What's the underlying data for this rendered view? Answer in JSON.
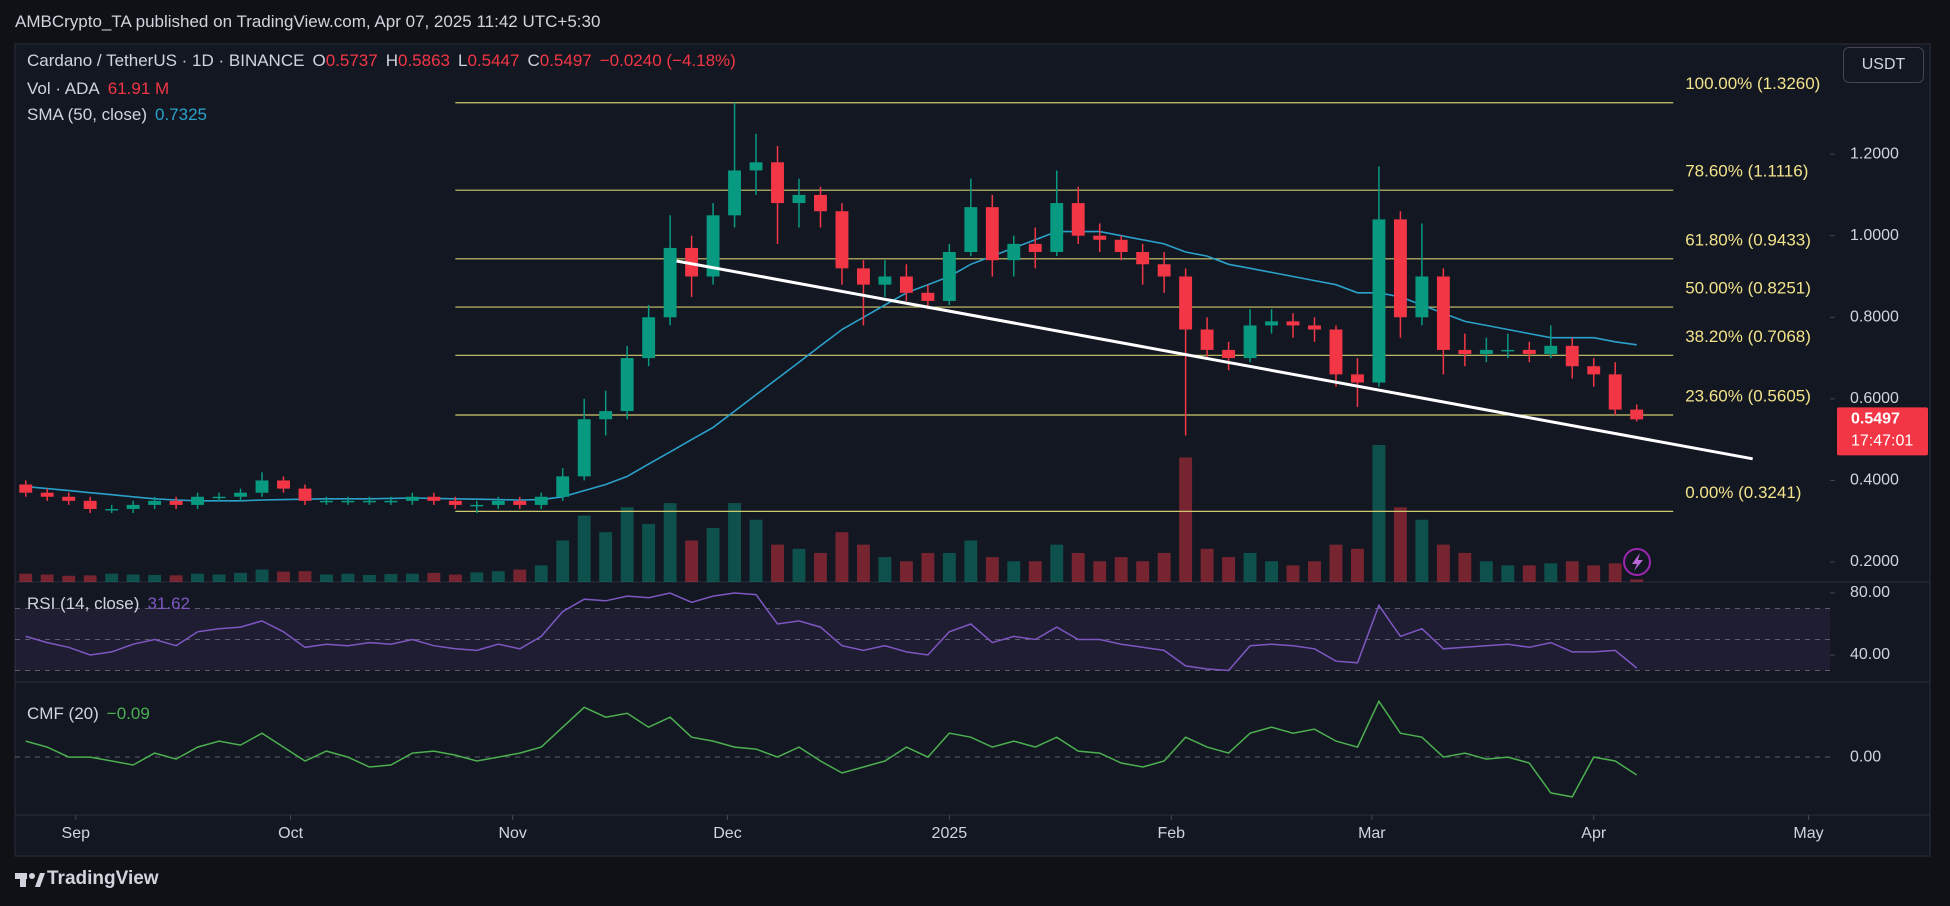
{
  "header": {
    "publisher": "AMBCrypto_TA published on TradingView.com, Apr 07, 2025 11:42 UTC+5:30"
  },
  "footer": {
    "brand": "TradingView"
  },
  "chart_data": {
    "type": "candlestick",
    "symbol": "Cardano / TetherUS · 1D · BINANCE",
    "ohlc": [
      {
        "label": "O",
        "value": 0.5737
      },
      {
        "label": "H",
        "value": 0.5863
      },
      {
        "label": "L",
        "value": 0.5447
      },
      {
        "label": "C",
        "value": 0.5497
      }
    ],
    "change": "−0.0240 (−4.18%)",
    "currency": "USDT",
    "colors": {
      "up": "#089981",
      "down": "#f23645"
    },
    "xlim": [
      -0.5,
      84
    ],
    "xticks": [
      {
        "value": 2.33,
        "label": "Sep"
      },
      {
        "value": 12.33,
        "label": "Oct"
      },
      {
        "value": 22.67,
        "label": "Nov"
      },
      {
        "value": 32.67,
        "label": "Dec"
      },
      {
        "value": 43,
        "label": "2025"
      },
      {
        "value": 53.33,
        "label": "Feb"
      },
      {
        "value": 62.67,
        "label": "Mar"
      },
      {
        "value": 73,
        "label": "Apr"
      },
      {
        "value": 83,
        "label": "May"
      }
    ],
    "ylim": [
      0.151,
      1.47
    ],
    "yticks": [
      {
        "value": 1.2,
        "label": "1.2000"
      },
      {
        "value": 1.0,
        "label": "1.0000"
      },
      {
        "value": 0.8,
        "label": "0.8000"
      },
      {
        "value": 0.6,
        "label": "0.6000"
      },
      {
        "value": 0.4,
        "label": "0.4000"
      },
      {
        "value": 0.2,
        "label": "0.2000"
      }
    ],
    "last_price": 0.5497,
    "countdown": "17:47:01",
    "candles": [
      [
        0.39,
        0.4,
        0.36,
        0.37
      ],
      [
        0.37,
        0.38,
        0.35,
        0.36
      ],
      [
        0.36,
        0.37,
        0.34,
        0.35
      ],
      [
        0.35,
        0.36,
        0.32,
        0.33
      ],
      [
        0.33,
        0.34,
        0.32,
        0.33
      ],
      [
        0.33,
        0.35,
        0.32,
        0.34
      ],
      [
        0.34,
        0.36,
        0.33,
        0.35
      ],
      [
        0.35,
        0.36,
        0.33,
        0.34
      ],
      [
        0.34,
        0.37,
        0.33,
        0.36
      ],
      [
        0.36,
        0.37,
        0.35,
        0.36
      ],
      [
        0.36,
        0.38,
        0.35,
        0.37
      ],
      [
        0.37,
        0.42,
        0.36,
        0.4
      ],
      [
        0.4,
        0.41,
        0.37,
        0.38
      ],
      [
        0.38,
        0.39,
        0.34,
        0.35
      ],
      [
        0.35,
        0.36,
        0.34,
        0.35
      ],
      [
        0.35,
        0.36,
        0.34,
        0.35
      ],
      [
        0.35,
        0.36,
        0.34,
        0.35
      ],
      [
        0.35,
        0.36,
        0.34,
        0.35
      ],
      [
        0.35,
        0.37,
        0.34,
        0.36
      ],
      [
        0.36,
        0.37,
        0.34,
        0.35
      ],
      [
        0.35,
        0.36,
        0.33,
        0.34
      ],
      [
        0.34,
        0.35,
        0.32,
        0.34
      ],
      [
        0.34,
        0.36,
        0.33,
        0.35
      ],
      [
        0.35,
        0.36,
        0.33,
        0.34
      ],
      [
        0.34,
        0.37,
        0.33,
        0.36
      ],
      [
        0.36,
        0.43,
        0.35,
        0.41
      ],
      [
        0.41,
        0.6,
        0.4,
        0.55
      ],
      [
        0.55,
        0.62,
        0.51,
        0.57
      ],
      [
        0.57,
        0.73,
        0.55,
        0.7
      ],
      [
        0.7,
        0.83,
        0.68,
        0.8
      ],
      [
        0.8,
        1.05,
        0.78,
        0.97
      ],
      [
        0.97,
        1.0,
        0.85,
        0.9
      ],
      [
        0.9,
        1.08,
        0.88,
        1.05
      ],
      [
        1.05,
        1.326,
        1.02,
        1.16
      ],
      [
        1.16,
        1.25,
        1.1,
        1.18
      ],
      [
        1.18,
        1.22,
        0.98,
        1.08
      ],
      [
        1.08,
        1.14,
        1.02,
        1.1
      ],
      [
        1.1,
        1.12,
        1.02,
        1.06
      ],
      [
        1.06,
        1.08,
        0.88,
        0.92
      ],
      [
        0.92,
        0.94,
        0.78,
        0.88
      ],
      [
        0.88,
        0.94,
        0.85,
        0.9
      ],
      [
        0.9,
        0.93,
        0.84,
        0.86
      ],
      [
        0.86,
        0.88,
        0.82,
        0.84
      ],
      [
        0.84,
        0.98,
        0.83,
        0.96
      ],
      [
        0.96,
        1.14,
        0.95,
        1.07
      ],
      [
        1.07,
        1.1,
        0.9,
        0.94
      ],
      [
        0.94,
        1.0,
        0.9,
        0.98
      ],
      [
        0.98,
        1.02,
        0.92,
        0.96
      ],
      [
        0.96,
        1.16,
        0.95,
        1.08
      ],
      [
        1.08,
        1.12,
        0.98,
        1.0
      ],
      [
        1.0,
        1.03,
        0.96,
        0.99
      ],
      [
        0.99,
        1.0,
        0.94,
        0.96
      ],
      [
        0.96,
        0.98,
        0.88,
        0.93
      ],
      [
        0.93,
        0.96,
        0.86,
        0.9
      ],
      [
        0.9,
        0.92,
        0.51,
        0.77
      ],
      [
        0.77,
        0.8,
        0.7,
        0.72
      ],
      [
        0.72,
        0.74,
        0.67,
        0.7
      ],
      [
        0.7,
        0.82,
        0.69,
        0.78
      ],
      [
        0.78,
        0.82,
        0.76,
        0.79
      ],
      [
        0.79,
        0.81,
        0.75,
        0.78
      ],
      [
        0.78,
        0.8,
        0.74,
        0.77
      ],
      [
        0.77,
        0.78,
        0.63,
        0.66
      ],
      [
        0.66,
        0.7,
        0.58,
        0.64
      ],
      [
        0.64,
        1.17,
        0.63,
        1.04
      ],
      [
        1.04,
        1.06,
        0.75,
        0.8
      ],
      [
        0.8,
        1.03,
        0.78,
        0.9
      ],
      [
        0.9,
        0.92,
        0.66,
        0.72
      ],
      [
        0.72,
        0.76,
        0.68,
        0.71
      ],
      [
        0.71,
        0.75,
        0.69,
        0.72
      ],
      [
        0.72,
        0.76,
        0.7,
        0.72
      ],
      [
        0.72,
        0.74,
        0.69,
        0.71
      ],
      [
        0.71,
        0.78,
        0.7,
        0.73
      ],
      [
        0.73,
        0.75,
        0.65,
        0.68
      ],
      [
        0.68,
        0.7,
        0.63,
        0.66
      ],
      [
        0.66,
        0.69,
        0.56,
        0.5737
      ],
      [
        0.5737,
        0.5863,
        0.5447,
        0.5497
      ]
    ],
    "fib": {
      "color": "#cfc96e",
      "label_color": "#f2e38a",
      "x": [
        20,
        76.7
      ],
      "levels": [
        {
          "label": "100.00% (1.3260)",
          "value": 1.326
        },
        {
          "label": "78.60% (1.1116)",
          "value": 1.1116
        },
        {
          "label": "61.80% (0.9433)",
          "value": 0.9433
        },
        {
          "label": "50.00% (0.8251)",
          "value": 0.8251
        },
        {
          "label": "38.20% (0.7068)",
          "value": 0.7068
        },
        {
          "label": "23.60% (0.5605)",
          "value": 0.5605
        },
        {
          "label": "0.00% (0.3241)",
          "value": 0.3241
        }
      ]
    },
    "trendline": {
      "color": "#ffffff",
      "x": [
        30.3,
        80.4
      ],
      "y": [
        0.938,
        0.453
      ]
    },
    "sma": {
      "name": "SMA (50, close)",
      "value": 0.7325,
      "color": "#2ba1c9",
      "values": [
        0.385,
        0.38,
        0.375,
        0.37,
        0.365,
        0.36,
        0.355,
        0.352,
        0.35,
        0.35,
        0.35,
        0.352,
        0.353,
        0.354,
        0.355,
        0.355,
        0.355,
        0.356,
        0.357,
        0.356,
        0.355,
        0.354,
        0.353,
        0.352,
        0.353,
        0.36,
        0.375,
        0.39,
        0.41,
        0.44,
        0.47,
        0.5,
        0.53,
        0.57,
        0.61,
        0.65,
        0.69,
        0.73,
        0.77,
        0.8,
        0.83,
        0.86,
        0.88,
        0.9,
        0.93,
        0.95,
        0.97,
        0.99,
        1.01,
        1.01,
        1.01,
        1.0,
        0.99,
        0.98,
        0.96,
        0.95,
        0.93,
        0.92,
        0.91,
        0.9,
        0.89,
        0.88,
        0.86,
        0.86,
        0.85,
        0.83,
        0.81,
        0.79,
        0.78,
        0.77,
        0.76,
        0.75,
        0.75,
        0.75,
        0.74,
        0.7325
      ]
    },
    "volume": {
      "name": "Vol · ADA",
      "value_label": "61.91 M",
      "values": [
        200,
        180,
        150,
        160,
        200,
        180,
        170,
        160,
        200,
        180,
        220,
        300,
        250,
        260,
        180,
        200,
        170,
        190,
        200,
        220,
        180,
        230,
        260,
        300,
        400,
        1000,
        1600,
        1200,
        1800,
        1400,
        1900,
        1000,
        1300,
        1900,
        1500,
        900,
        800,
        700,
        1200,
        900,
        600,
        500,
        700,
        700,
        1000,
        600,
        500,
        500,
        900,
        700,
        500,
        600,
        500,
        700,
        3000,
        800,
        600,
        700,
        500,
        400,
        500,
        900,
        800,
        3300,
        1800,
        1500,
        900,
        700,
        500,
        400,
        400,
        450,
        500,
        400,
        450,
        61.91
      ]
    },
    "rsi": {
      "name": "RSI (14, close)",
      "value": 31.62,
      "color": "#7e57c2",
      "ylim": [
        22.6,
        87.1
      ],
      "yticks": [
        {
          "value": 80,
          "label": "80.00"
        },
        {
          "value": 40,
          "label": "40.00"
        }
      ],
      "levels": [
        30,
        50,
        70
      ],
      "values": [
        52,
        48,
        45,
        40,
        42,
        47,
        50,
        46,
        55,
        57,
        58,
        62,
        55,
        45,
        47,
        46,
        48,
        47,
        50,
        46,
        44,
        43,
        47,
        44,
        52,
        68,
        76,
        75,
        78,
        77,
        80,
        74,
        78,
        80,
        79,
        60,
        62,
        58,
        46,
        43,
        46,
        42,
        40,
        55,
        60,
        48,
        52,
        50,
        58,
        50,
        50,
        47,
        45,
        43,
        33,
        31,
        30,
        46,
        47,
        46,
        44,
        36,
        35,
        72,
        52,
        57,
        44,
        45,
        46,
        47,
        45,
        48,
        42,
        42,
        43,
        31.62
      ]
    },
    "cmf": {
      "name": "CMF (20)",
      "value_label": "−0.09",
      "color": "#4caf50",
      "ylim": [
        -0.291,
        0.377
      ],
      "yticks": [
        {
          "value": 0,
          "label": "0.00"
        }
      ],
      "values": [
        0.08,
        0.05,
        0.0,
        0.0,
        -0.02,
        -0.04,
        0.02,
        -0.01,
        0.05,
        0.08,
        0.06,
        0.12,
        0.05,
        -0.02,
        0.03,
        0.0,
        -0.05,
        -0.04,
        0.02,
        0.03,
        0.01,
        -0.02,
        0.0,
        0.02,
        0.05,
        0.15,
        0.25,
        0.2,
        0.22,
        0.15,
        0.2,
        0.1,
        0.08,
        0.05,
        0.04,
        0.0,
        0.05,
        -0.02,
        -0.08,
        -0.05,
        -0.02,
        0.05,
        0.0,
        0.12,
        0.1,
        0.05,
        0.08,
        0.05,
        0.1,
        0.03,
        0.02,
        -0.03,
        -0.05,
        -0.02,
        0.1,
        0.05,
        0.02,
        0.12,
        0.15,
        0.12,
        0.14,
        0.08,
        0.05,
        0.28,
        0.12,
        0.1,
        0.0,
        0.02,
        -0.01,
        0.0,
        -0.03,
        -0.18,
        -0.2,
        0.0,
        -0.02,
        -0.09
      ]
    }
  }
}
